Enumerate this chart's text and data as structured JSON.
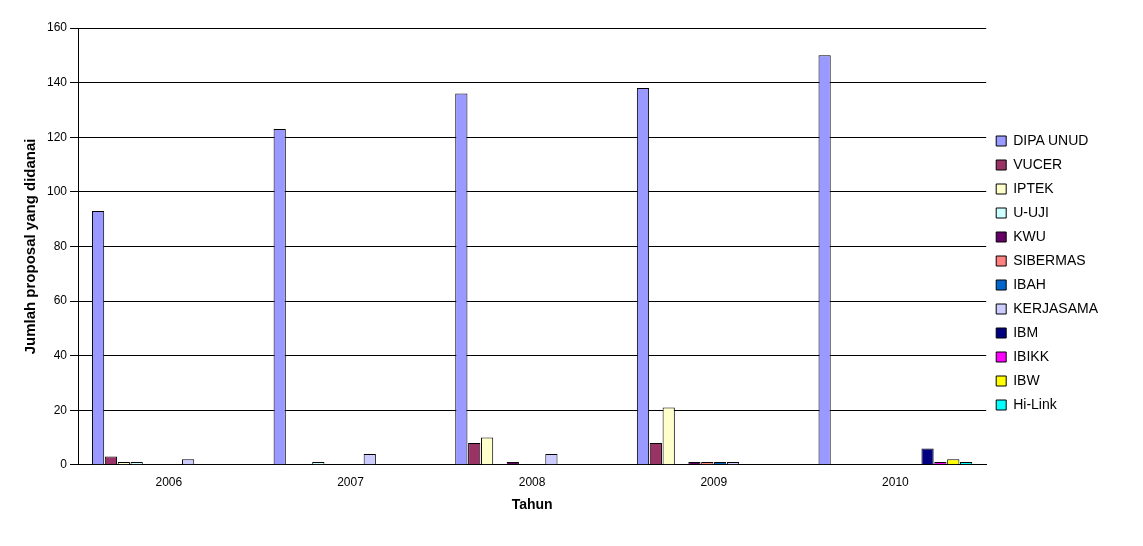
{
  "chart_data": {
    "type": "bar",
    "xlabel": "Tahun",
    "ylabel": "Jumlah proposal yang didanai",
    "categories": [
      "2006",
      "2007",
      "2008",
      "2009",
      "2010"
    ],
    "series": [
      {
        "name": "DIPA UNUD",
        "color": "#9999ff",
        "values": [
          93,
          123,
          136,
          138,
          150
        ]
      },
      {
        "name": "VUCER",
        "color": "#993366",
        "values": [
          3,
          0,
          8,
          8,
          0
        ]
      },
      {
        "name": "IPTEK",
        "color": "#ffffcc",
        "values": [
          1,
          0,
          10,
          21,
          0
        ]
      },
      {
        "name": "U-UJI",
        "color": "#ccffff",
        "values": [
          1,
          1,
          0,
          0,
          0
        ]
      },
      {
        "name": "KWU",
        "color": "#660066",
        "values": [
          0,
          0,
          1,
          1,
          0
        ]
      },
      {
        "name": "SIBERMAS",
        "color": "#ff8080",
        "values": [
          0,
          0,
          0,
          1,
          0
        ]
      },
      {
        "name": "IBAH",
        "color": "#0066cc",
        "values": [
          0,
          0,
          0,
          1,
          0
        ]
      },
      {
        "name": "KERJASAMA",
        "color": "#ccccff",
        "values": [
          2,
          4,
          4,
          1,
          0
        ]
      },
      {
        "name": "IBM",
        "color": "#000080",
        "values": [
          0,
          0,
          0,
          0,
          6
        ]
      },
      {
        "name": "IBIKK",
        "color": "#ff00ff",
        "values": [
          0,
          0,
          0,
          0,
          1
        ]
      },
      {
        "name": "IBW",
        "color": "#ffff00",
        "values": [
          0,
          0,
          0,
          0,
          2
        ]
      },
      {
        "name": "Hi-Link",
        "color": "#00ffff",
        "values": [
          0,
          0,
          0,
          0,
          1
        ]
      }
    ],
    "ylim": [
      0,
      160
    ],
    "yticks": [
      0,
      20,
      40,
      60,
      80,
      100,
      120,
      140,
      160
    ],
    "grid": "y",
    "legend": "right"
  }
}
